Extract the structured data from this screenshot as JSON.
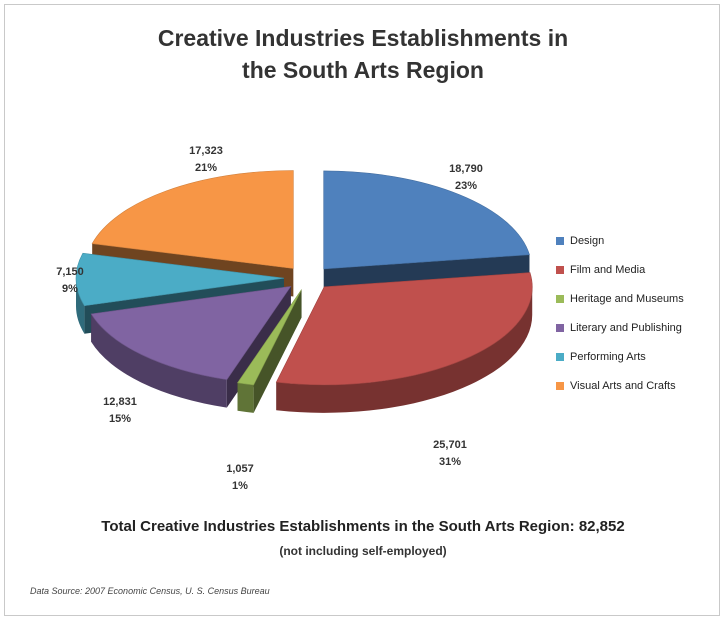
{
  "chart_data": {
    "type": "pie",
    "title_line1": "Creative Industries Establishments in",
    "title_line2": "the South Arts Region",
    "slices": [
      {
        "name": "Design",
        "value": 18790,
        "value_label": "18,790",
        "percent_label": "23%",
        "color": "#4f81bd"
      },
      {
        "name": "Film and Media",
        "value": 25701,
        "value_label": "25,701",
        "percent_label": "31%",
        "color": "#c0504d"
      },
      {
        "name": "Heritage and Museums",
        "value": 1057,
        "value_label": "1,057",
        "percent_label": "1%",
        "color": "#9bbb59"
      },
      {
        "name": "Literary and Publishing",
        "value": 12831,
        "value_label": "12,831",
        "percent_label": "15%",
        "color": "#8064a2"
      },
      {
        "name": "Performing Arts",
        "value": 7150,
        "value_label": "7,150",
        "percent_label": "9%",
        "color": "#4bacc6"
      },
      {
        "name": "Visual Arts and Crafts",
        "value": 17323,
        "value_label": "17,323",
        "percent_label": "21%",
        "color": "#f79646"
      }
    ],
    "legend_position": "right",
    "total_text": "Total Creative Industries Establishments in the South Arts Region: 82,852",
    "note_text": "(not including self-employed)",
    "source_text": "Data Source:  2007 Economic  Census,  U. S. Census Bureau"
  }
}
